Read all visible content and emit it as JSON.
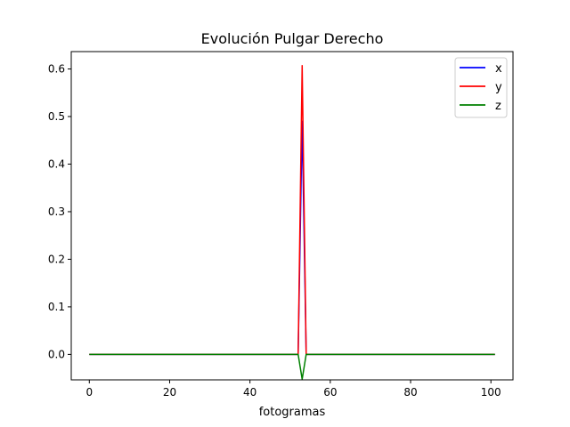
{
  "chart_data": {
    "type": "line",
    "title": "Evolución Pulgar Derecho",
    "xlabel": "fotogramas",
    "ylabel": "",
    "xlim": [
      -4.5,
      105.5
    ],
    "ylim": [
      -0.0535,
      0.6365
    ],
    "xticks": [
      0,
      20,
      40,
      60,
      80,
      100
    ],
    "xtick_labels": [
      "0",
      "20",
      "40",
      "60",
      "80",
      "100"
    ],
    "yticks": [
      0.0,
      0.1,
      0.2,
      0.3,
      0.4,
      0.5,
      0.6
    ],
    "ytick_labels": [
      "0.0",
      "0.1",
      "0.2",
      "0.3",
      "0.4",
      "0.5",
      "0.6"
    ],
    "grid": false,
    "legend": "top-right",
    "series": [
      {
        "name": "x",
        "color": "#0000ff",
        "points": [
          [
            0,
            0.0
          ],
          [
            52,
            0.0
          ],
          [
            53,
            0.49
          ],
          [
            54,
            0.0
          ],
          [
            101,
            0.0
          ]
        ]
      },
      {
        "name": "y",
        "color": "#ff0000",
        "points": [
          [
            0,
            0.0
          ],
          [
            52,
            0.0
          ],
          [
            53,
            0.607
          ],
          [
            54,
            0.0
          ],
          [
            101,
            0.0
          ]
        ]
      },
      {
        "name": "z",
        "color": "#008000",
        "points": [
          [
            0,
            0.0
          ],
          [
            52,
            0.0
          ],
          [
            53,
            -0.052
          ],
          [
            54,
            0.0
          ],
          [
            101,
            0.0
          ]
        ]
      }
    ]
  }
}
